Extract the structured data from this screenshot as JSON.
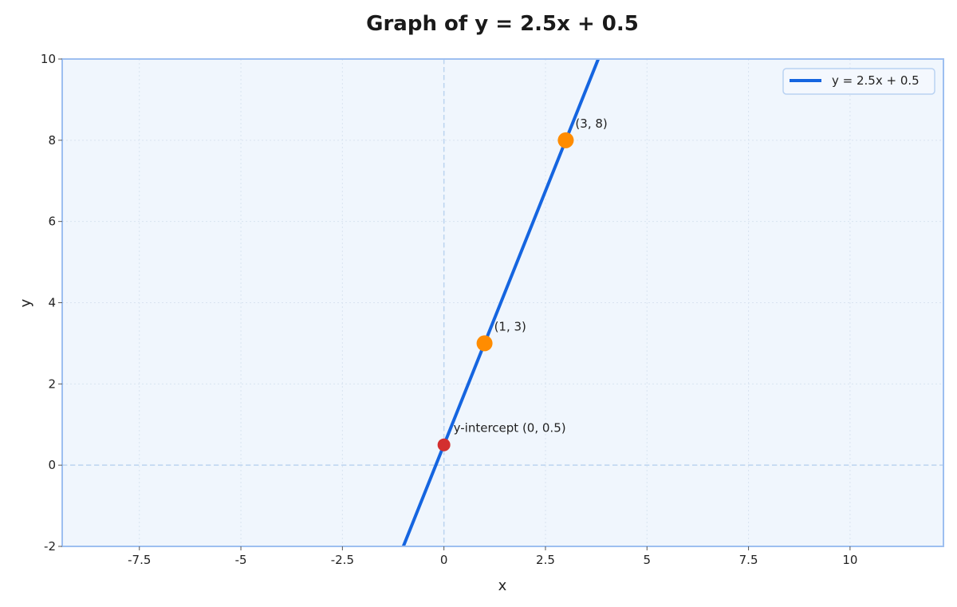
{
  "chart_data": {
    "type": "line",
    "title": "Graph of y = 2.5x + 0.5",
    "xlabel": "x",
    "ylabel": "y",
    "xlim": [
      -9.4,
      12.3
    ],
    "ylim": [
      -2,
      10
    ],
    "x_ticks": [
      -7.5,
      -5,
      -2.5,
      0,
      2.5,
      5,
      7.5,
      10
    ],
    "x_tick_labels": [
      "-7.5",
      "-5",
      "-2.5",
      "0",
      "2.5",
      "5",
      "7.5",
      "10"
    ],
    "y_ticks": [
      -2,
      0,
      2,
      4,
      6,
      8,
      10
    ],
    "y_tick_labels": [
      "-2",
      "0",
      "2",
      "4",
      "6",
      "8",
      "10"
    ],
    "grid": true,
    "legend_position": "top-right",
    "series": [
      {
        "name": "y = 2.5x + 0.5",
        "slope": 2.5,
        "intercept": 0.5,
        "x": [
          -1,
          3.8
        ],
        "y": [
          -2,
          10
        ],
        "color": "#1565e0"
      }
    ],
    "points": [
      {
        "x": 1,
        "y": 3,
        "label": "(1, 3)",
        "color": "#ff8c00"
      },
      {
        "x": 3,
        "y": 8,
        "label": "(3, 8)",
        "color": "#ff8c00"
      },
      {
        "x": 0,
        "y": 0.5,
        "label": "y-intercept (0, 0.5)",
        "color": "#d32f2f"
      }
    ],
    "colors": {
      "plot_background": "#f0f6fd",
      "frame": "#9dbff0",
      "grid": "#d8e3f0",
      "zero_lines": "#bcd4f0"
    }
  }
}
